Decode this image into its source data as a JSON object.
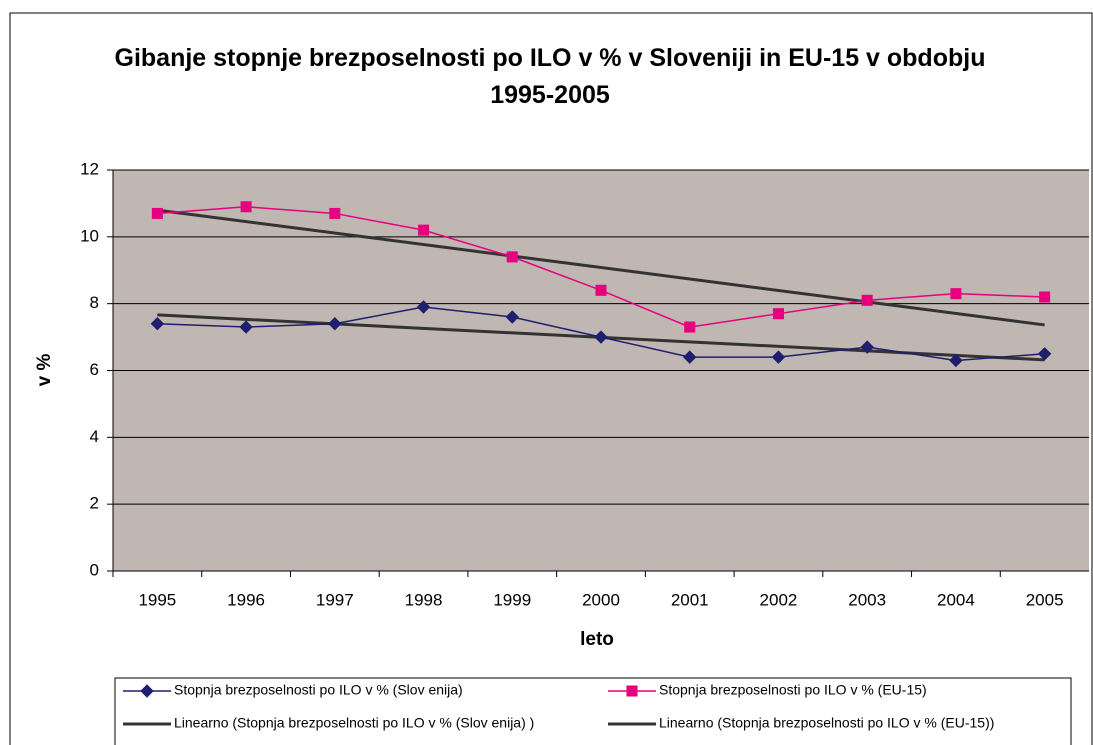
{
  "chart_data": {
    "type": "line",
    "title": "Gibanje stopnje brezposelnosti po ILO v % v Sloveniji in EU-15 v obdobju 1995-2005",
    "x_label": "leto",
    "y_label": "v %",
    "categories": [
      "1995",
      "1996",
      "1997",
      "1998",
      "1999",
      "2000",
      "2001",
      "2002",
      "2003",
      "2004",
      "2005"
    ],
    "series": [
      {
        "name": "Stopnja brezposelnosti po ILO v % (Slov enija)",
        "color": "#1f1f6e",
        "marker": "diamond",
        "values": [
          7.4,
          7.3,
          7.4,
          7.9,
          7.6,
          7.0,
          6.4,
          6.4,
          6.7,
          6.3,
          6.5
        ]
      },
      {
        "name": "Stopnja brezposelnosti po ILO v % (EU-15)",
        "color": "#e6007e",
        "marker": "square",
        "values": [
          10.7,
          10.9,
          10.7,
          10.2,
          9.4,
          8.4,
          7.3,
          7.7,
          8.1,
          8.3,
          8.2
        ]
      }
    ],
    "trendlines": [
      {
        "name": "Linearno (Stopnja brezposelnosti po ILO v % (Slov enija) )",
        "series": 0,
        "color": "#333333"
      },
      {
        "name": "Linearno (Stopnja brezposelnosti po ILO v % (EU-15))",
        "series": 1,
        "color": "#333333"
      }
    ],
    "ylim": [
      0,
      12
    ],
    "yticks": [
      0,
      2,
      4,
      6,
      8,
      10,
      12
    ],
    "grid": true,
    "legend": "bottom"
  }
}
